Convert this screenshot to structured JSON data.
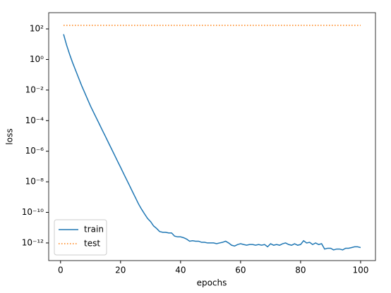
{
  "chart_data": {
    "type": "line",
    "xlabel": "epochs",
    "ylabel": "loss",
    "x": [
      1,
      2,
      3,
      4,
      5,
      6,
      7,
      8,
      9,
      10,
      11,
      12,
      13,
      14,
      15,
      16,
      17,
      18,
      19,
      20,
      21,
      22,
      23,
      24,
      25,
      26,
      27,
      28,
      29,
      30,
      31,
      32,
      33,
      34,
      35,
      36,
      37,
      38,
      39,
      40,
      41,
      42,
      43,
      44,
      45,
      46,
      47,
      48,
      49,
      50,
      51,
      52,
      53,
      54,
      55,
      56,
      57,
      58,
      59,
      60,
      61,
      62,
      63,
      64,
      65,
      66,
      67,
      68,
      69,
      70,
      71,
      72,
      73,
      74,
      75,
      76,
      77,
      78,
      79,
      80,
      81,
      82,
      83,
      84,
      85,
      86,
      87,
      88,
      89,
      90,
      91,
      92,
      93,
      94,
      95,
      96,
      97,
      98,
      99,
      100
    ],
    "series": [
      {
        "name": "train",
        "color": "#1f77b4",
        "style": "solid",
        "values": [
          44.7,
          8.9,
          2.24,
          0.63,
          0.2,
          0.063,
          0.02,
          0.0071,
          0.0025,
          0.00089,
          0.00035,
          0.00014,
          5.6e-05,
          2.2e-05,
          8.9e-06,
          3.5e-06,
          1.4e-06,
          5.6e-07,
          2.2e-07,
          8.9e-08,
          3.5e-08,
          1.4e-08,
          5.6e-09,
          2.2e-09,
          8.9e-10,
          3.5e-10,
          1.6e-10,
          7.9e-11,
          4e-11,
          2.5e-11,
          1.3e-11,
          8.9e-12,
          5.6e-12,
          5e-12,
          5e-12,
          4.5e-12,
          4.5e-12,
          2.8e-12,
          2.5e-12,
          2.5e-12,
          2.2e-12,
          1.8e-12,
          1.3e-12,
          1.4e-12,
          1.3e-12,
          1.3e-12,
          1.1e-12,
          1.1e-12,
          1e-12,
          1e-12,
          1e-12,
          8.9e-13,
          1e-12,
          1.1e-12,
          1.3e-12,
          1e-12,
          7.1e-13,
          6.3e-13,
          7.9e-13,
          8.9e-13,
          7.9e-13,
          7.1e-13,
          7.9e-13,
          7.9e-13,
          7.1e-13,
          7.9e-13,
          7.1e-13,
          7.9e-13,
          5.6e-13,
          8.9e-13,
          7.1e-13,
          7.9e-13,
          7.1e-13,
          8.9e-13,
          1e-12,
          7.9e-13,
          7.1e-13,
          8.9e-13,
          7.1e-13,
          7.9e-13,
          1.4e-12,
          1e-12,
          1.1e-12,
          7.9e-13,
          1e-12,
          7.9e-13,
          8.9e-13,
          4e-13,
          4.5e-13,
          4.5e-13,
          3.5e-13,
          4e-13,
          4e-13,
          3.5e-13,
          4.5e-13,
          4.5e-13,
          5e-13,
          5.6e-13,
          5.6e-13,
          5e-13
        ]
      },
      {
        "name": "test",
        "color": "#ff7f0e",
        "style": "dotted",
        "values": [
          170,
          170,
          170,
          170,
          170,
          170,
          170,
          170,
          170,
          170,
          170,
          170,
          170,
          170,
          170,
          170,
          170,
          170,
          170,
          170,
          170,
          170,
          170,
          170,
          170,
          170,
          170,
          170,
          170,
          170,
          170,
          170,
          170,
          170,
          170,
          170,
          170,
          170,
          170,
          170,
          170,
          170,
          170,
          170,
          170,
          170,
          170,
          170,
          170,
          170,
          170,
          170,
          170,
          170,
          170,
          170,
          170,
          170,
          170,
          170,
          170,
          170,
          170,
          170,
          170,
          170,
          170,
          170,
          170,
          170,
          170,
          170,
          170,
          170,
          170,
          170,
          170,
          170,
          170,
          170,
          170,
          170,
          170,
          170,
          170,
          170,
          170,
          170,
          170,
          170,
          170,
          170,
          170,
          170,
          170,
          170,
          170,
          170,
          170,
          170
        ]
      }
    ],
    "xlim": [
      -3.95,
      104.95
    ],
    "xticks": [
      0,
      20,
      40,
      60,
      80,
      100
    ],
    "ylim": [
      7e-14,
      1150
    ],
    "ylog": true,
    "yticks": [
      {
        "value": 100,
        "label": "10²"
      },
      {
        "value": 1,
        "label": "10⁰"
      },
      {
        "value": 0.01,
        "label": "10⁻²"
      },
      {
        "value": 0.0001,
        "label": "10⁻⁴"
      },
      {
        "value": 1e-06,
        "label": "10⁻⁶"
      },
      {
        "value": 1e-08,
        "label": "10⁻⁸"
      },
      {
        "value": 1e-10,
        "label": "10⁻¹⁰"
      },
      {
        "value": 1e-12,
        "label": "10⁻¹²"
      }
    ],
    "legend": "lower left"
  }
}
